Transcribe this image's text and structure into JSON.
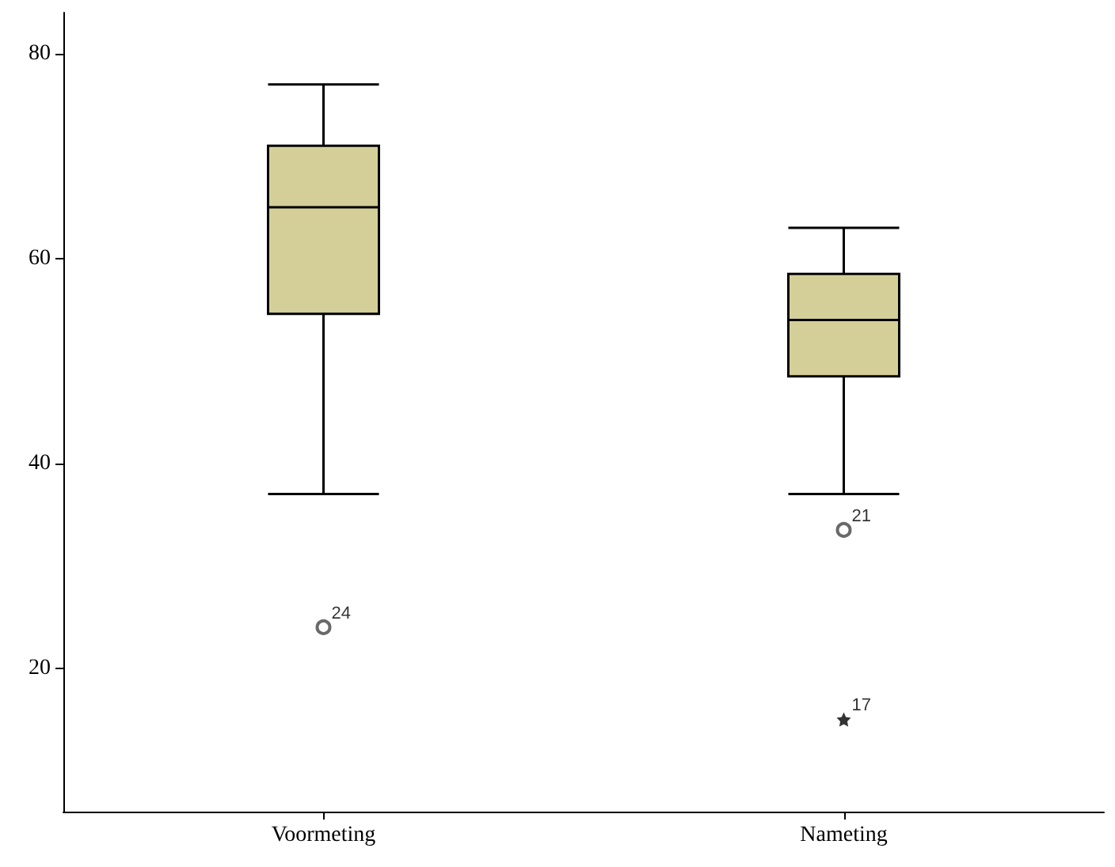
{
  "chart_data": {
    "type": "box",
    "categories": [
      "Voormeting",
      "Nameting"
    ],
    "color": "#d4cf98",
    "boxes": [
      {
        "low": 37,
        "q1": 54.6,
        "median": 65,
        "q3": 71,
        "high": 77,
        "outliers": [
          24
        ]
      },
      {
        "low": 37,
        "q1": 48.5,
        "median": 54,
        "q3": 58.5,
        "high": 63,
        "outliers": [
          33.5
        ]
      }
    ],
    "series": [
      {
        "type": "scatter",
        "x": [
          "Nameting"
        ],
        "values": [
          15
        ],
        "marker": "star",
        "color": "#000000"
      }
    ],
    "ylim": [
      6,
      84
    ],
    "yticks": [
      20,
      40,
      60,
      80
    ],
    "grid": false,
    "annotations": [
      "24",
      "21",
      "17"
    ]
  }
}
